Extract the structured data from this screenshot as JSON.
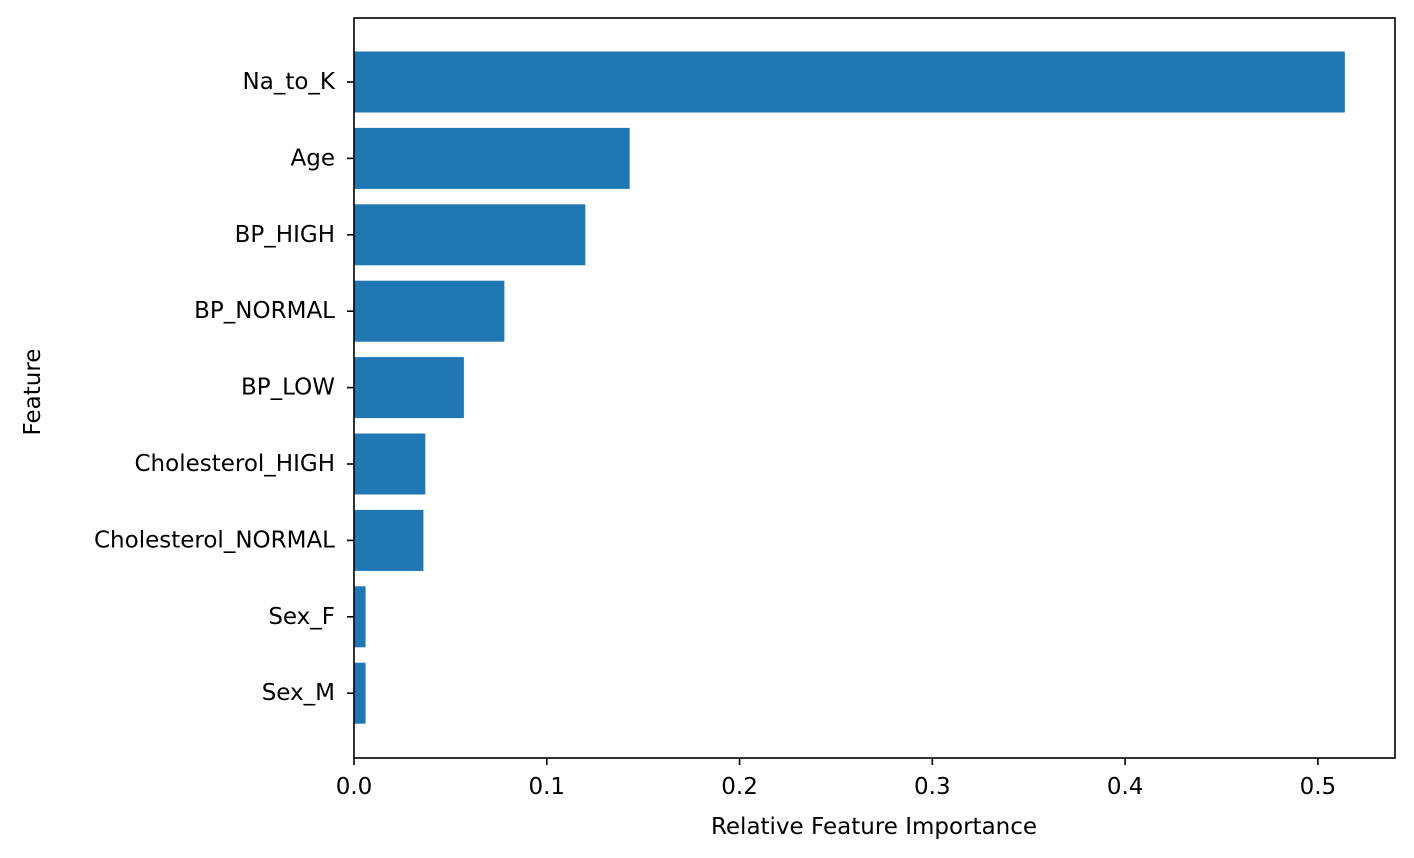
{
  "chart_data": {
    "type": "bar",
    "orientation": "horizontal",
    "title": "",
    "xlabel": "Relative Feature Importance",
    "ylabel": "Feature",
    "categories": [
      "Na_to_K",
      "Age",
      "BP_HIGH",
      "BP_NORMAL",
      "BP_LOW",
      "Cholesterol_HIGH",
      "Cholesterol_NORMAL",
      "Sex_F",
      "Sex_M"
    ],
    "values": [
      0.514,
      0.143,
      0.12,
      0.078,
      0.057,
      0.037,
      0.036,
      0.006,
      0.006
    ],
    "xlim": [
      0,
      0.54
    ],
    "xticks": [
      0.0,
      0.1,
      0.2,
      0.3,
      0.4,
      0.5
    ],
    "xtick_labels": [
      "0.0",
      "0.1",
      "0.2",
      "0.3",
      "0.4",
      "0.5"
    ],
    "bar_color": "#1f77b4",
    "grid": false,
    "legend": "none"
  }
}
